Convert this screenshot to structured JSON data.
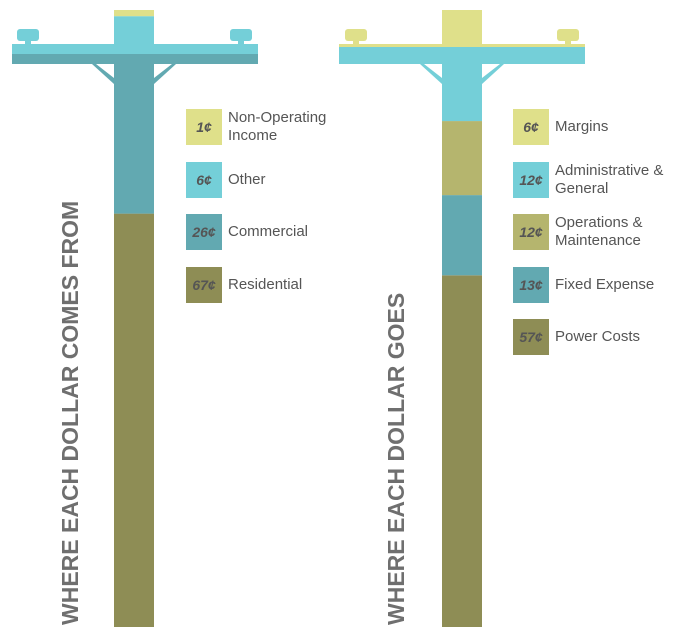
{
  "chart_data": [
    {
      "type": "stacked-pole",
      "title": "WHERE EACH DOLLAR COMES FROM",
      "categories": [
        "Non-Operating Income",
        "Other",
        "Commercial",
        "Residential"
      ],
      "values": [
        1,
        6,
        26,
        67
      ],
      "value_labels": [
        "1¢",
        "6¢",
        "26¢",
        "67¢"
      ],
      "colors": [
        "#dfe08a",
        "#74cfd8",
        "#62a9b1",
        "#8e8d55"
      ]
    },
    {
      "type": "stacked-pole",
      "title": "WHERE EACH DOLLAR GOES",
      "categories": [
        "Margins",
        "Administrative & General",
        "Operations & Maintenance",
        "Fixed Expense",
        "Power Costs"
      ],
      "values": [
        6,
        12,
        12,
        13,
        57
      ],
      "value_labels": [
        "6¢",
        "12¢",
        "12¢",
        "13¢",
        "57¢"
      ],
      "colors": [
        "#dfe08a",
        "#74cfd8",
        "#b5b56e",
        "#62a9b1",
        "#8e8d55"
      ]
    }
  ]
}
